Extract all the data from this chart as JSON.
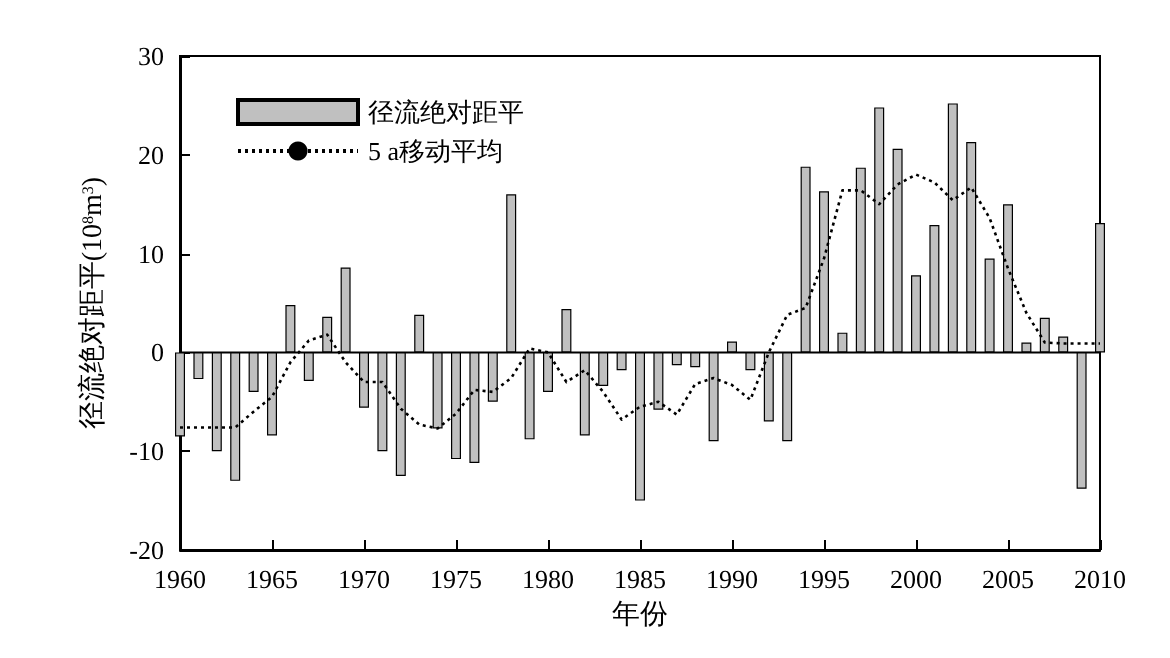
{
  "chart_data": {
    "type": "bar",
    "xlabel": "年份",
    "ylabel": "径流绝对距平(10$^{8}$m$^{3}$)",
    "xlim": [
      1960,
      2010
    ],
    "xticks": [
      1960,
      1965,
      1970,
      1975,
      1980,
      1985,
      1990,
      1995,
      2000,
      2005,
      2010
    ],
    "ylim": [
      -20,
      30
    ],
    "yticks": [
      -20,
      -10,
      0,
      10,
      20,
      30
    ],
    "legend": "top left",
    "grid": false,
    "ref_lines": [
      {
        "axis": "y",
        "value": 0,
        "color": "#000000"
      }
    ],
    "x": [
      1960,
      1961,
      1962,
      1963,
      1964,
      1965,
      1966,
      1967,
      1968,
      1969,
      1970,
      1971,
      1972,
      1973,
      1974,
      1975,
      1976,
      1977,
      1978,
      1979,
      1980,
      1981,
      1982,
      1983,
      1984,
      1985,
      1986,
      1987,
      1988,
      1989,
      1990,
      1991,
      1992,
      1993,
      1994,
      1995,
      1996,
      1997,
      1998,
      1999,
      2000,
      2001,
      2002,
      2003,
      2004,
      2005,
      2006,
      2007,
      2008,
      2009,
      2010
    ],
    "series": [
      {
        "name": "径流绝对距平",
        "color": "#c0c0c0",
        "values": [
          -8.5,
          -2.7,
          -10,
          -13,
          -4,
          -8.4,
          4.8,
          -2.9,
          3.6,
          8.6,
          -5.6,
          -10,
          -12.5,
          3.8,
          -7.7,
          -10.8,
          -11.2,
          -5,
          16,
          -8.8,
          -4,
          4.4,
          -8.4,
          -3.4,
          -1.8,
          -15,
          -5.8,
          -1.3,
          -1.5,
          -9,
          1.1,
          -1.8,
          -7,
          -9,
          18.8,
          16.3,
          2,
          18.7,
          24.8,
          20.6,
          7.8,
          12.9,
          25.2,
          21.3,
          9.5,
          15,
          1,
          3.5,
          1.6,
          -13.8,
          13.1
        ]
      },
      {
        "name": "5 a移动平均",
        "type": "line",
        "color": "#000000",
        "line_style": "dotted",
        "values": [
          -7.6,
          -7.6,
          -7.6,
          -7.6,
          -6,
          -4.5,
          -1,
          1.2,
          1.8,
          -1,
          -3,
          -3,
          -5.7,
          -7.3,
          -7.7,
          -6.2,
          -3.8,
          -4,
          -2.6,
          0.4,
          0,
          -3,
          -1.8,
          -4,
          -6.8,
          -5.5,
          -5,
          -6.3,
          -3.2,
          -2.6,
          -3.3,
          -4.8,
          0,
          3.8,
          4.5,
          9.5,
          16.4,
          16.4,
          15,
          17,
          18,
          17.2,
          15.4,
          16.7,
          13.6,
          8.5,
          4,
          1,
          0.9,
          0.9,
          0.9
        ]
      }
    ]
  }
}
